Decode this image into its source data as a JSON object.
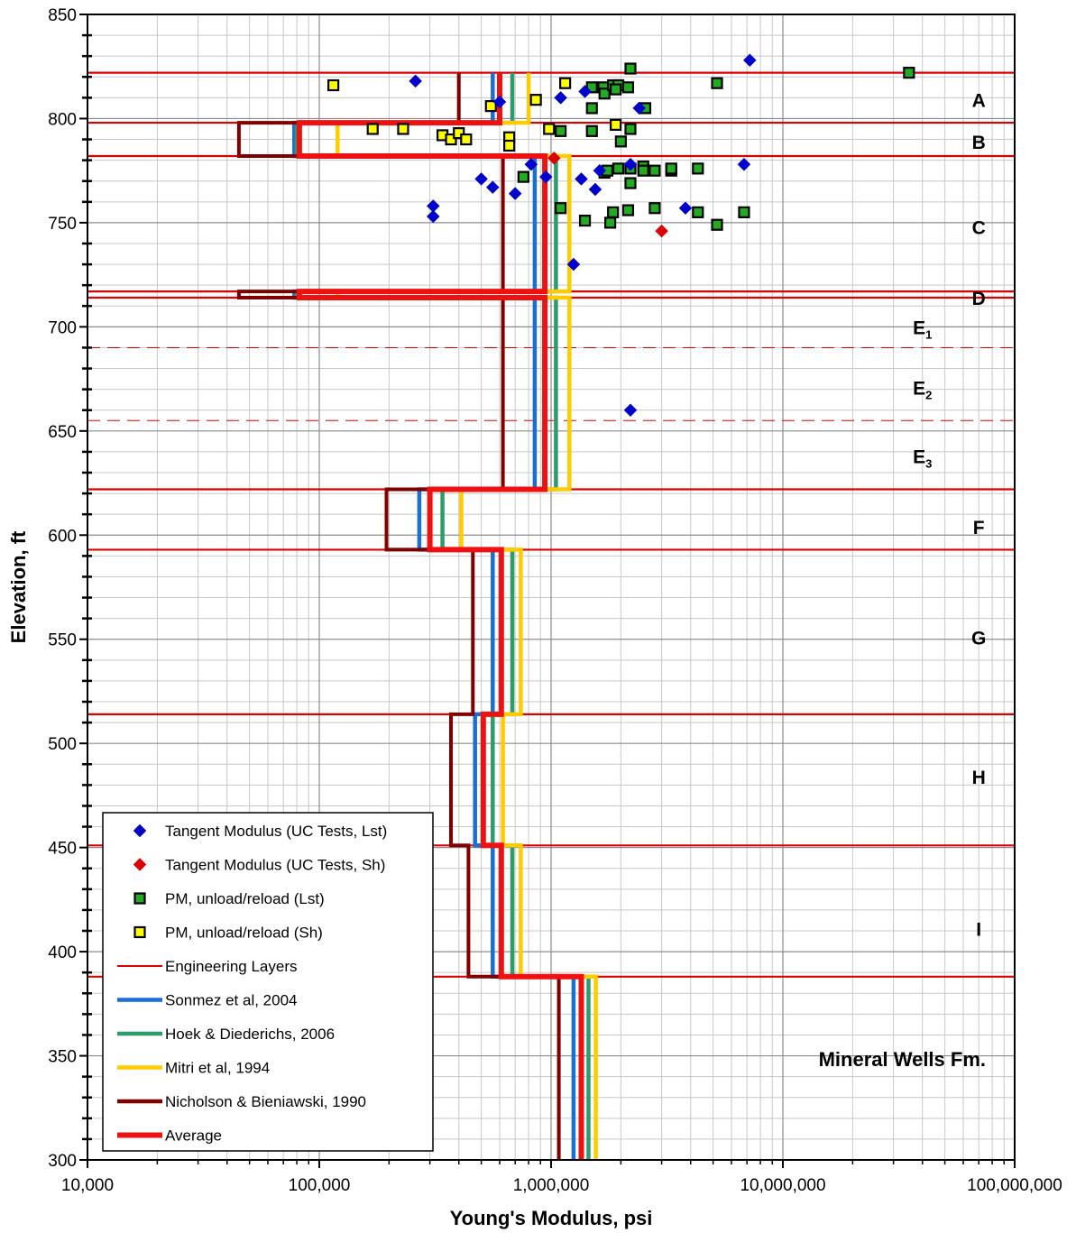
{
  "chart_data": {
    "type": "scatter",
    "xlabel": "Young's Modulus, psi",
    "ylabel": "Elevation, ft",
    "xscale": "log",
    "xlim": [
      10000,
      100000000
    ],
    "ylim": [
      300,
      850
    ],
    "x_ticks": [
      10000,
      100000,
      1000000,
      10000000,
      100000000
    ],
    "x_tick_labels": [
      "10,000",
      "100,000",
      "1,000,000",
      "10,000,000",
      "100,000,000"
    ],
    "y_ticks": [
      300,
      350,
      400,
      450,
      500,
      550,
      600,
      650,
      700,
      750,
      800,
      850
    ],
    "y_tick_labels": [
      "300",
      "350",
      "400",
      "450",
      "500",
      "550",
      "600",
      "650",
      "700",
      "750",
      "800",
      "850"
    ],
    "grid": true,
    "legend_position": "bottom-left",
    "formation_label": "Mineral Wells Fm.",
    "colors": {
      "lst_tangent": "#0000CC",
      "sh_tangent": "#DD0000",
      "pm_lst": "#22AA22",
      "pm_sh": "#FFFF00",
      "layers": "#DD0000",
      "sonmez": "#1A6FD4",
      "hoek": "#2E9B6A",
      "mitri": "#FFCC00",
      "nicholson": "#800000",
      "average": "#EE1111"
    },
    "layer_boundaries": [
      822,
      798,
      782,
      717,
      714,
      622,
      593,
      514,
      451,
      388
    ],
    "sublayer_boundaries": [
      690,
      655
    ],
    "layer_labels": [
      {
        "base": "A",
        "sub": "",
        "elevation": 809,
        "x": 70000000
      },
      {
        "base": "B",
        "sub": "",
        "elevation": 789,
        "x": 70000000
      },
      {
        "base": "C",
        "sub": "",
        "elevation": 748,
        "x": 70000000
      },
      {
        "base": "D",
        "sub": "",
        "elevation": 714,
        "x": 70000000
      },
      {
        "base": "E",
        "sub": "1",
        "elevation": 700,
        "x": 40000000
      },
      {
        "base": "E",
        "sub": "2",
        "elevation": 671,
        "x": 40000000
      },
      {
        "base": "E",
        "sub": "3",
        "elevation": 638,
        "x": 40000000
      },
      {
        "base": "F",
        "sub": "",
        "elevation": 604,
        "x": 70000000
      },
      {
        "base": "G",
        "sub": "",
        "elevation": 551,
        "x": 70000000
      },
      {
        "base": "H",
        "sub": "",
        "elevation": 484,
        "x": 70000000
      },
      {
        "base": "I",
        "sub": "",
        "elevation": 411,
        "x": 70000000
      }
    ],
    "series": [
      {
        "name": "Tangent Modulus (UC Tests, Lst)",
        "kind": "scatter",
        "marker": "diamond",
        "color_key": "lst_tangent",
        "points": [
          [
            260000,
            818
          ],
          [
            600000,
            808
          ],
          [
            1100000,
            810
          ],
          [
            1400000,
            813
          ],
          [
            2400000,
            805
          ],
          [
            7200000,
            828
          ],
          [
            500000,
            771
          ],
          [
            560000,
            767
          ],
          [
            700000,
            764
          ],
          [
            820000,
            778
          ],
          [
            950000,
            772
          ],
          [
            1350000,
            771
          ],
          [
            1550000,
            766
          ],
          [
            1620000,
            775
          ],
          [
            2200000,
            778
          ],
          [
            6800000,
            778
          ],
          [
            310000,
            758
          ],
          [
            310000,
            753
          ],
          [
            3800000,
            757
          ],
          [
            1250000,
            730
          ],
          [
            2200000,
            660
          ]
        ]
      },
      {
        "name": "Tangent Modulus (UC Tests, Sh)",
        "kind": "scatter",
        "marker": "diamond",
        "color_key": "sh_tangent",
        "points": [
          [
            1030000,
            781
          ],
          [
            3000000,
            746
          ]
        ]
      },
      {
        "name": "PM, unload/reload (Lst)",
        "kind": "scatter",
        "marker": "square",
        "color_key": "pm_lst",
        "points": [
          [
            35000000,
            822
          ],
          [
            2200000,
            824
          ],
          [
            1500000,
            815
          ],
          [
            1680000,
            815
          ],
          [
            1700000,
            812
          ],
          [
            1850000,
            816
          ],
          [
            1950000,
            816
          ],
          [
            2150000,
            815
          ],
          [
            1900000,
            814
          ],
          [
            5200000,
            817
          ],
          [
            1500000,
            805
          ],
          [
            2550000,
            805
          ],
          [
            1100000,
            794
          ],
          [
            1500000,
            794
          ],
          [
            2200000,
            795
          ],
          [
            2000000,
            789
          ],
          [
            760000,
            772
          ],
          [
            1700000,
            774
          ],
          [
            1750000,
            775
          ],
          [
            1950000,
            776
          ],
          [
            2200000,
            776
          ],
          [
            2500000,
            777
          ],
          [
            2500000,
            775
          ],
          [
            2800000,
            775
          ],
          [
            3300000,
            775
          ],
          [
            3300000,
            776
          ],
          [
            4300000,
            776
          ],
          [
            2200000,
            769
          ],
          [
            1100000,
            757
          ],
          [
            2150000,
            756
          ],
          [
            1850000,
            755
          ],
          [
            2800000,
            757
          ],
          [
            4300000,
            755
          ],
          [
            6800000,
            755
          ],
          [
            1400000,
            751
          ],
          [
            1800000,
            750
          ],
          [
            5200000,
            749
          ]
        ]
      },
      {
        "name": "PM, unload/reload (Sh)",
        "kind": "scatter",
        "marker": "square",
        "color_key": "pm_sh",
        "points": [
          [
            115000,
            816
          ],
          [
            550000,
            806
          ],
          [
            860000,
            809
          ],
          [
            1150000,
            817
          ],
          [
            1900000,
            797
          ],
          [
            170000,
            795
          ],
          [
            230000,
            795
          ],
          [
            980000,
            795
          ],
          [
            340000,
            792
          ],
          [
            370000,
            790
          ],
          [
            400000,
            793
          ],
          [
            430000,
            790
          ],
          [
            660000,
            791
          ],
          [
            660000,
            787
          ]
        ]
      },
      {
        "name": "Engineering Layers",
        "kind": "legend-only",
        "color_key": "layers"
      },
      {
        "name": "Sonmez et al, 2004",
        "kind": "profile",
        "color_key": "sonmez",
        "points": [
          [
            560000,
            822
          ],
          [
            560000,
            798
          ],
          [
            78000,
            798
          ],
          [
            78000,
            782
          ],
          [
            850000,
            782
          ],
          [
            850000,
            717
          ],
          [
            78000,
            717
          ],
          [
            78000,
            714
          ],
          [
            850000,
            714
          ],
          [
            850000,
            622
          ],
          [
            270000,
            622
          ],
          [
            270000,
            593
          ],
          [
            560000,
            593
          ],
          [
            560000,
            514
          ],
          [
            470000,
            514
          ],
          [
            470000,
            451
          ],
          [
            560000,
            451
          ],
          [
            560000,
            388
          ],
          [
            1250000,
            388
          ],
          [
            1250000,
            300
          ]
        ]
      },
      {
        "name": "Hoek & Diederichs, 2006",
        "kind": "profile",
        "color_key": "hoek",
        "points": [
          [
            680000,
            822
          ],
          [
            680000,
            798
          ],
          [
            80000,
            798
          ],
          [
            80000,
            782
          ],
          [
            1050000,
            782
          ],
          [
            1050000,
            717
          ],
          [
            80000,
            717
          ],
          [
            80000,
            714
          ],
          [
            1050000,
            714
          ],
          [
            1050000,
            622
          ],
          [
            340000,
            622
          ],
          [
            340000,
            593
          ],
          [
            680000,
            593
          ],
          [
            680000,
            514
          ],
          [
            560000,
            514
          ],
          [
            560000,
            451
          ],
          [
            680000,
            451
          ],
          [
            680000,
            388
          ],
          [
            1450000,
            388
          ],
          [
            1450000,
            300
          ]
        ]
      },
      {
        "name": "Mitri et al, 1994",
        "kind": "profile",
        "color_key": "mitri",
        "points": [
          [
            800000,
            822
          ],
          [
            800000,
            798
          ],
          [
            120000,
            798
          ],
          [
            120000,
            782
          ],
          [
            1200000,
            782
          ],
          [
            1200000,
            717
          ],
          [
            120000,
            717
          ],
          [
            120000,
            714
          ],
          [
            1200000,
            714
          ],
          [
            1200000,
            622
          ],
          [
            410000,
            622
          ],
          [
            410000,
            593
          ],
          [
            740000,
            593
          ],
          [
            740000,
            514
          ],
          [
            620000,
            514
          ],
          [
            620000,
            451
          ],
          [
            740000,
            451
          ],
          [
            740000,
            388
          ],
          [
            1560000,
            388
          ],
          [
            1560000,
            300
          ]
        ]
      },
      {
        "name": "Nicholson & Bieniawski, 1990",
        "kind": "profile",
        "color_key": "nicholson",
        "points": [
          [
            400000,
            822
          ],
          [
            400000,
            798
          ],
          [
            45000,
            798
          ],
          [
            45000,
            782
          ],
          [
            620000,
            782
          ],
          [
            620000,
            717
          ],
          [
            45000,
            717
          ],
          [
            45000,
            714
          ],
          [
            620000,
            714
          ],
          [
            620000,
            622
          ],
          [
            195000,
            622
          ],
          [
            195000,
            593
          ],
          [
            460000,
            593
          ],
          [
            460000,
            514
          ],
          [
            370000,
            514
          ],
          [
            370000,
            451
          ],
          [
            440000,
            451
          ],
          [
            440000,
            388
          ],
          [
            1080000,
            388
          ],
          [
            1080000,
            300
          ]
        ]
      },
      {
        "name": "Average",
        "kind": "profile",
        "color_key": "average",
        "points": [
          [
            600000,
            822
          ],
          [
            600000,
            798
          ],
          [
            82000,
            798
          ],
          [
            82000,
            782
          ],
          [
            940000,
            782
          ],
          [
            940000,
            717
          ],
          [
            82000,
            717
          ],
          [
            82000,
            714
          ],
          [
            940000,
            714
          ],
          [
            940000,
            622
          ],
          [
            300000,
            622
          ],
          [
            300000,
            593
          ],
          [
            610000,
            593
          ],
          [
            610000,
            514
          ],
          [
            510000,
            514
          ],
          [
            510000,
            451
          ],
          [
            610000,
            451
          ],
          [
            610000,
            388
          ],
          [
            1350000,
            388
          ],
          [
            1350000,
            300
          ]
        ]
      }
    ]
  }
}
